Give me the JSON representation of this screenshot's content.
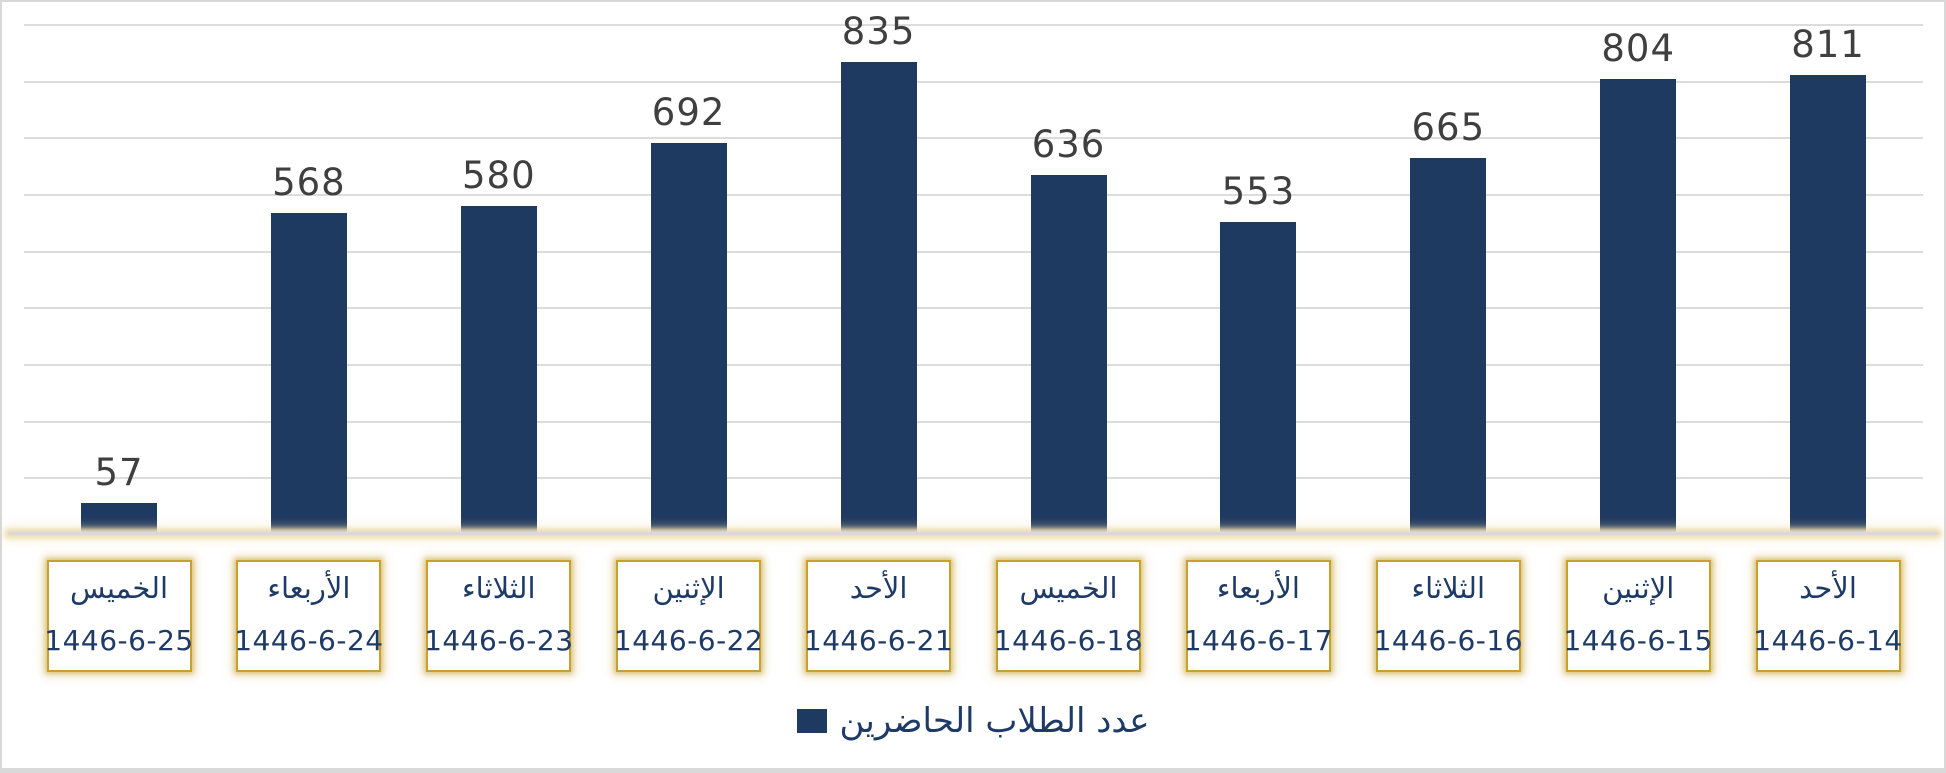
{
  "chart_data": {
    "type": "bar",
    "title": "",
    "legend": {
      "label": "عدد الطلاب الحاضرين",
      "position": "bottom-center"
    },
    "categories": [
      {
        "day": "الخميس",
        "date": "1446-6-25"
      },
      {
        "day": "الأربعاء",
        "date": "1446-6-24"
      },
      {
        "day": "الثلاثاء",
        "date": "1446-6-23"
      },
      {
        "day": "الإثنين",
        "date": "1446-6-22"
      },
      {
        "day": "الأحد",
        "date": "1446-6-21"
      },
      {
        "day": "الخميس",
        "date": "1446-6-18"
      },
      {
        "day": "الأربعاء",
        "date": "1446-6-17"
      },
      {
        "day": "الثلاثاء",
        "date": "1446-6-16"
      },
      {
        "day": "الإثنين",
        "date": "1446-6-15"
      },
      {
        "day": "الأحد",
        "date": "1446-6-14"
      }
    ],
    "series": [
      {
        "name": "عدد الطلاب الحاضرين",
        "values": [
          57,
          568,
          580,
          692,
          835,
          636,
          553,
          665,
          804,
          811
        ]
      }
    ],
    "ylim": [
      0,
      900
    ],
    "gridline_step": 100,
    "grid": true,
    "value_labels": "outside-end",
    "colors": {
      "bar": "#1f3a61",
      "value_label": "#3f3f3f",
      "category_text": "#1e3a66",
      "gold_border": "#c7a02e",
      "gridline": "#dcdcdc",
      "axis_line": "#d9d9d9",
      "axis_glow": "#eedfae",
      "frame_border": "#d8d8d8"
    }
  }
}
